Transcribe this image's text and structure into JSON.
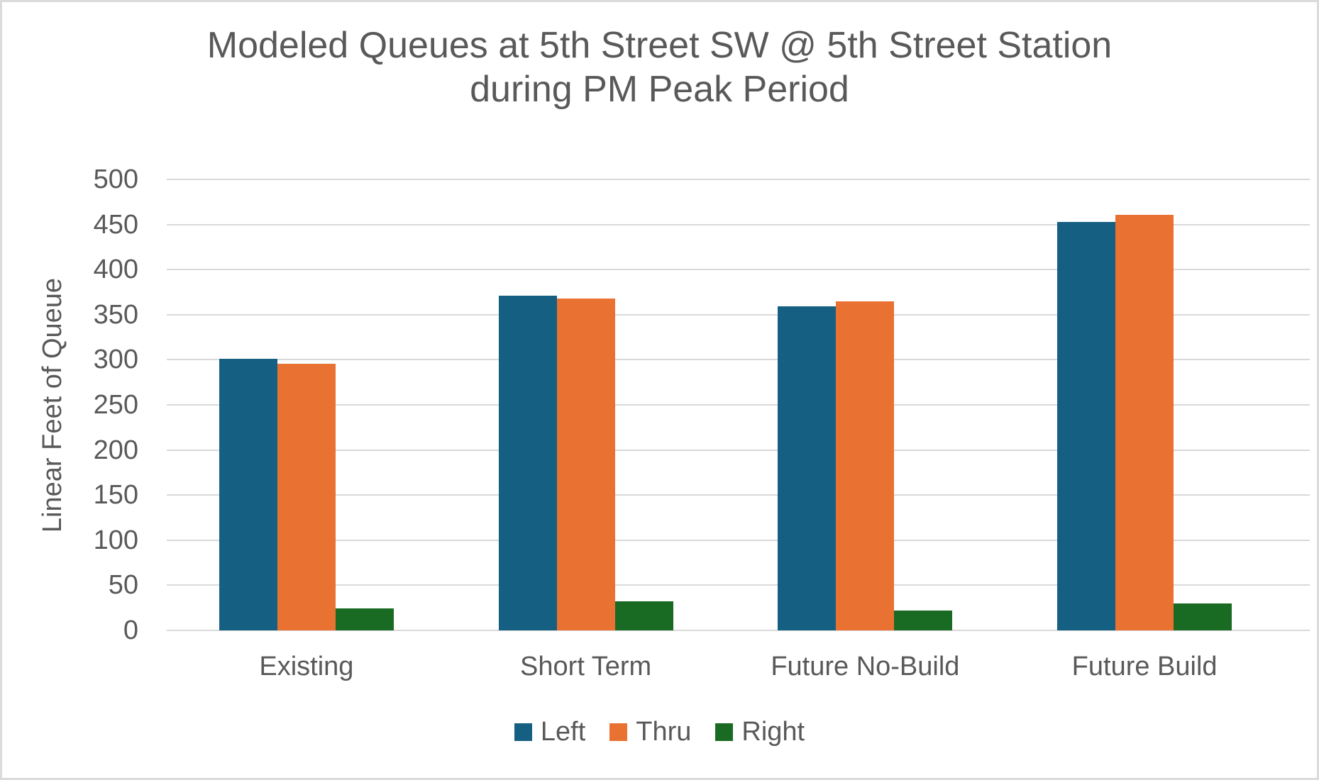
{
  "window": {
    "background_color": "#FFFFFF",
    "border_color": "#DBDBDB",
    "text_color": "#595959",
    "gridline_color": "#D9D9D9"
  },
  "chart_data": {
    "type": "bar",
    "title": "Modeled Queues at 5th Street SW @ 5th Street Station during PM Peak Period",
    "xlabel": "",
    "ylabel": "Linear Feet of Queue",
    "categories": [
      "Existing",
      "Short Term",
      "Future No-Build",
      "Future Build"
    ],
    "series": [
      {
        "name": "Left",
        "color": "#156082",
        "values": [
          301,
          371,
          359,
          453
        ]
      },
      {
        "name": "Thru",
        "color": "#E97132",
        "values": [
          296,
          368,
          365,
          461
        ]
      },
      {
        "name": "Right",
        "color": "#196B24",
        "values": [
          24,
          32,
          22,
          30
        ]
      }
    ],
    "ylim": [
      0,
      500
    ],
    "yticks": [
      0,
      50,
      100,
      150,
      200,
      250,
      300,
      350,
      400,
      450,
      500
    ],
    "grid": "horizontal",
    "legend_position": "bottom",
    "legend_labels": [
      "Left",
      "Thru",
      "Right"
    ]
  }
}
